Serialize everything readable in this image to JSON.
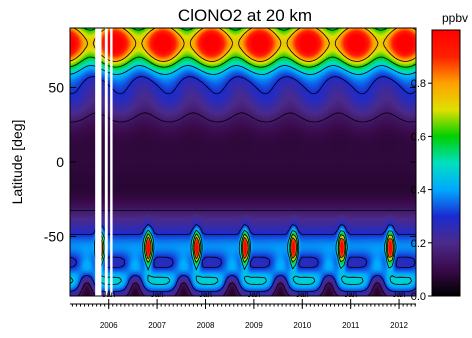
{
  "chart_data": {
    "type": "heatmap",
    "title": "ClONO2 at 20 km",
    "ylabel": "Latitude [deg]",
    "xlabel": "",
    "ylim": [
      -90,
      90
    ],
    "xlim": [
      2005.2,
      2012.35
    ],
    "y_ticks": [
      {
        "value": 50,
        "label": "50"
      },
      {
        "value": 0,
        "label": "0"
      },
      {
        "value": -50,
        "label": "-50"
      }
    ],
    "x_ticks": [
      {
        "value": 2006.0,
        "month_label": "Jan",
        "year_label": "2006"
      },
      {
        "value": 2007.0,
        "month_label": "Jan",
        "year_label": "2007"
      },
      {
        "value": 2008.0,
        "month_label": "Jan",
        "year_label": "2008"
      },
      {
        "value": 2009.0,
        "month_label": "Jan",
        "year_label": "2009"
      },
      {
        "value": 2010.0,
        "month_label": "Jan",
        "year_label": "2010"
      },
      {
        "value": 2011.0,
        "month_label": "Jan",
        "year_label": "2011"
      },
      {
        "value": 2012.0,
        "month_label": "Jan",
        "year_label": "2012"
      }
    ],
    "colorbar": {
      "unit": "ppbv",
      "range": [
        0.0,
        1.0
      ],
      "ticks": [
        {
          "value": 0.8,
          "label": "0.8"
        },
        {
          "value": 0.6,
          "label": "0.6"
        },
        {
          "value": 0.4,
          "label": "0.4"
        },
        {
          "value": 0.2,
          "label": "0.2"
        },
        {
          "value": 0.0,
          "label": "0.0"
        }
      ]
    },
    "data_gaps": [
      {
        "start": 2005.72,
        "end": 2005.85
      },
      {
        "start": 2005.92,
        "end": 2005.98
      },
      {
        "start": 2006.03,
        "end": 2006.08
      }
    ],
    "contour_levels": [
      0.15,
      0.3,
      0.45,
      0.6,
      0.75
    ],
    "grid": false,
    "colormap": [
      "#000000",
      "#3a0a4a",
      "#4b2a8a",
      "#1a2bd0",
      "#00a8ff",
      "#00e0c0",
      "#00d000",
      "#e0e000",
      "#ffa000",
      "#ff2000",
      "#ff0000"
    ]
  }
}
